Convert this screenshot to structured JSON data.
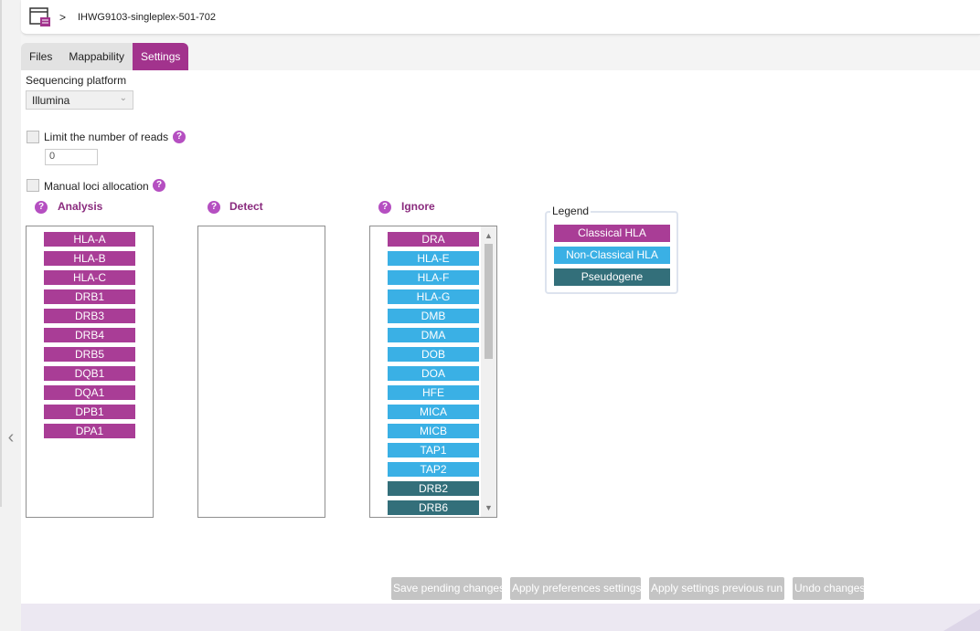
{
  "header": {
    "breadcrumb_separator": ">",
    "project_name": "IHWG9103-singleplex-501-702"
  },
  "tabs": [
    {
      "label": "Files",
      "active": false
    },
    {
      "label": "Mappability",
      "active": false
    },
    {
      "label": "Settings",
      "active": true
    }
  ],
  "settings": {
    "platform_label": "Sequencing platform",
    "platform_value": "Illumina",
    "limit_reads_label": "Limit the number of reads",
    "limit_reads_checked": false,
    "limit_reads_value": "0",
    "manual_loci_label": "Manual loci allocation",
    "manual_loci_checked": false,
    "help_glyph": "?"
  },
  "columns": {
    "analysis": {
      "title": "Analysis",
      "items": [
        {
          "name": "HLA-A",
          "type": "classical"
        },
        {
          "name": "HLA-B",
          "type": "classical"
        },
        {
          "name": "HLA-C",
          "type": "classical"
        },
        {
          "name": "DRB1",
          "type": "classical"
        },
        {
          "name": "DRB3",
          "type": "classical"
        },
        {
          "name": "DRB4",
          "type": "classical"
        },
        {
          "name": "DRB5",
          "type": "classical"
        },
        {
          "name": "DQB1",
          "type": "classical"
        },
        {
          "name": "DQA1",
          "type": "classical"
        },
        {
          "name": "DPB1",
          "type": "classical"
        },
        {
          "name": "DPA1",
          "type": "classical"
        }
      ]
    },
    "detect": {
      "title": "Detect",
      "items": []
    },
    "ignore": {
      "title": "Ignore",
      "items": [
        {
          "name": "DRA",
          "type": "classical"
        },
        {
          "name": "HLA-E",
          "type": "nonclassical"
        },
        {
          "name": "HLA-F",
          "type": "nonclassical"
        },
        {
          "name": "HLA-G",
          "type": "nonclassical"
        },
        {
          "name": "DMB",
          "type": "nonclassical"
        },
        {
          "name": "DMA",
          "type": "nonclassical"
        },
        {
          "name": "DOB",
          "type": "nonclassical"
        },
        {
          "name": "DOA",
          "type": "nonclassical"
        },
        {
          "name": "HFE",
          "type": "nonclassical"
        },
        {
          "name": "MICA",
          "type": "nonclassical"
        },
        {
          "name": "MICB",
          "type": "nonclassical"
        },
        {
          "name": "TAP1",
          "type": "nonclassical"
        },
        {
          "name": "TAP2",
          "type": "nonclassical"
        },
        {
          "name": "DRB2",
          "type": "pseudogene"
        },
        {
          "name": "DRB6",
          "type": "pseudogene"
        }
      ]
    }
  },
  "legend": {
    "title": "Legend",
    "classical": "Classical HLA",
    "nonclassical": "Non-Classical HLA",
    "pseudogene": "Pseudogene"
  },
  "actions": {
    "save": "Save pending changes",
    "apply_prefs": "Apply preferences settings",
    "apply_prev": "Apply settings previous run",
    "undo": "Undo changes"
  },
  "colors": {
    "accent": "#a2338d",
    "classical": "#a93d96",
    "nonclassical": "#3ab0e5",
    "pseudogene": "#336f7a",
    "disabled_button": "#c4c4c4"
  },
  "icons": {
    "app": "window-panel-icon",
    "help": "question-circle-icon",
    "collapse": "chevron-left-icon",
    "dropdown": "chevron-down-icon"
  }
}
